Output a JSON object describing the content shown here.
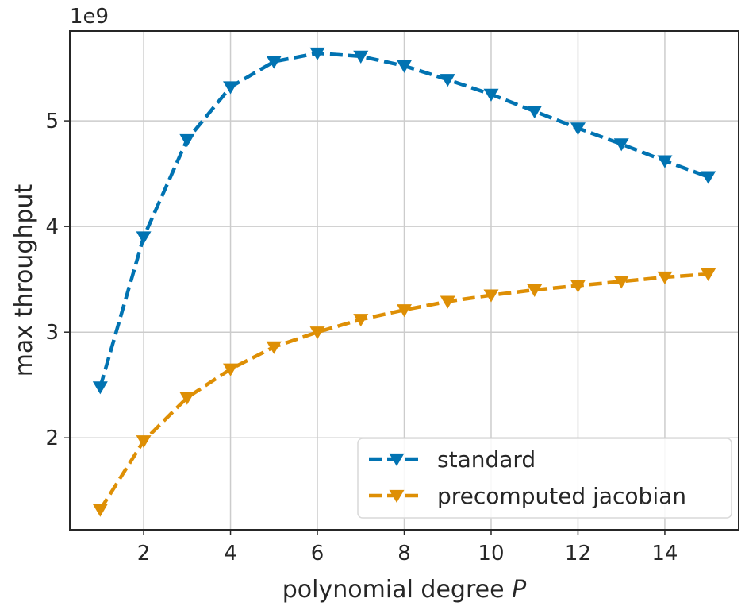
{
  "chart_data": {
    "type": "line",
    "xlabel": "polynomial degree",
    "xlabel_var": "P",
    "ylabel": "max throughput",
    "y_multiplier": "1e9",
    "xlim": [
      0.3,
      15.7
    ],
    "ylim": [
      1.13,
      5.85
    ],
    "xticks": [
      2,
      4,
      6,
      8,
      10,
      12,
      14
    ],
    "yticks": [
      2,
      3,
      4,
      5
    ],
    "grid": true,
    "legend_position": "lower right",
    "x": [
      1,
      2,
      3,
      4,
      5,
      6,
      7,
      8,
      9,
      10,
      11,
      12,
      13,
      14,
      15
    ],
    "series": [
      {
        "name": "standard",
        "color": "#0173b2",
        "marker": "triangle-down",
        "linestyle": "dashed",
        "values": [
          2.48,
          3.9,
          4.82,
          5.32,
          5.56,
          5.64,
          5.61,
          5.52,
          5.39,
          5.25,
          5.09,
          4.93,
          4.78,
          4.62,
          4.47
        ]
      },
      {
        "name": "precomputed jacobian",
        "color": "#de8f05",
        "marker": "triangle-down",
        "linestyle": "dashed",
        "values": [
          1.32,
          1.97,
          2.38,
          2.65,
          2.86,
          3.0,
          3.12,
          3.21,
          3.29,
          3.35,
          3.4,
          3.44,
          3.48,
          3.52,
          3.55
        ]
      }
    ]
  }
}
